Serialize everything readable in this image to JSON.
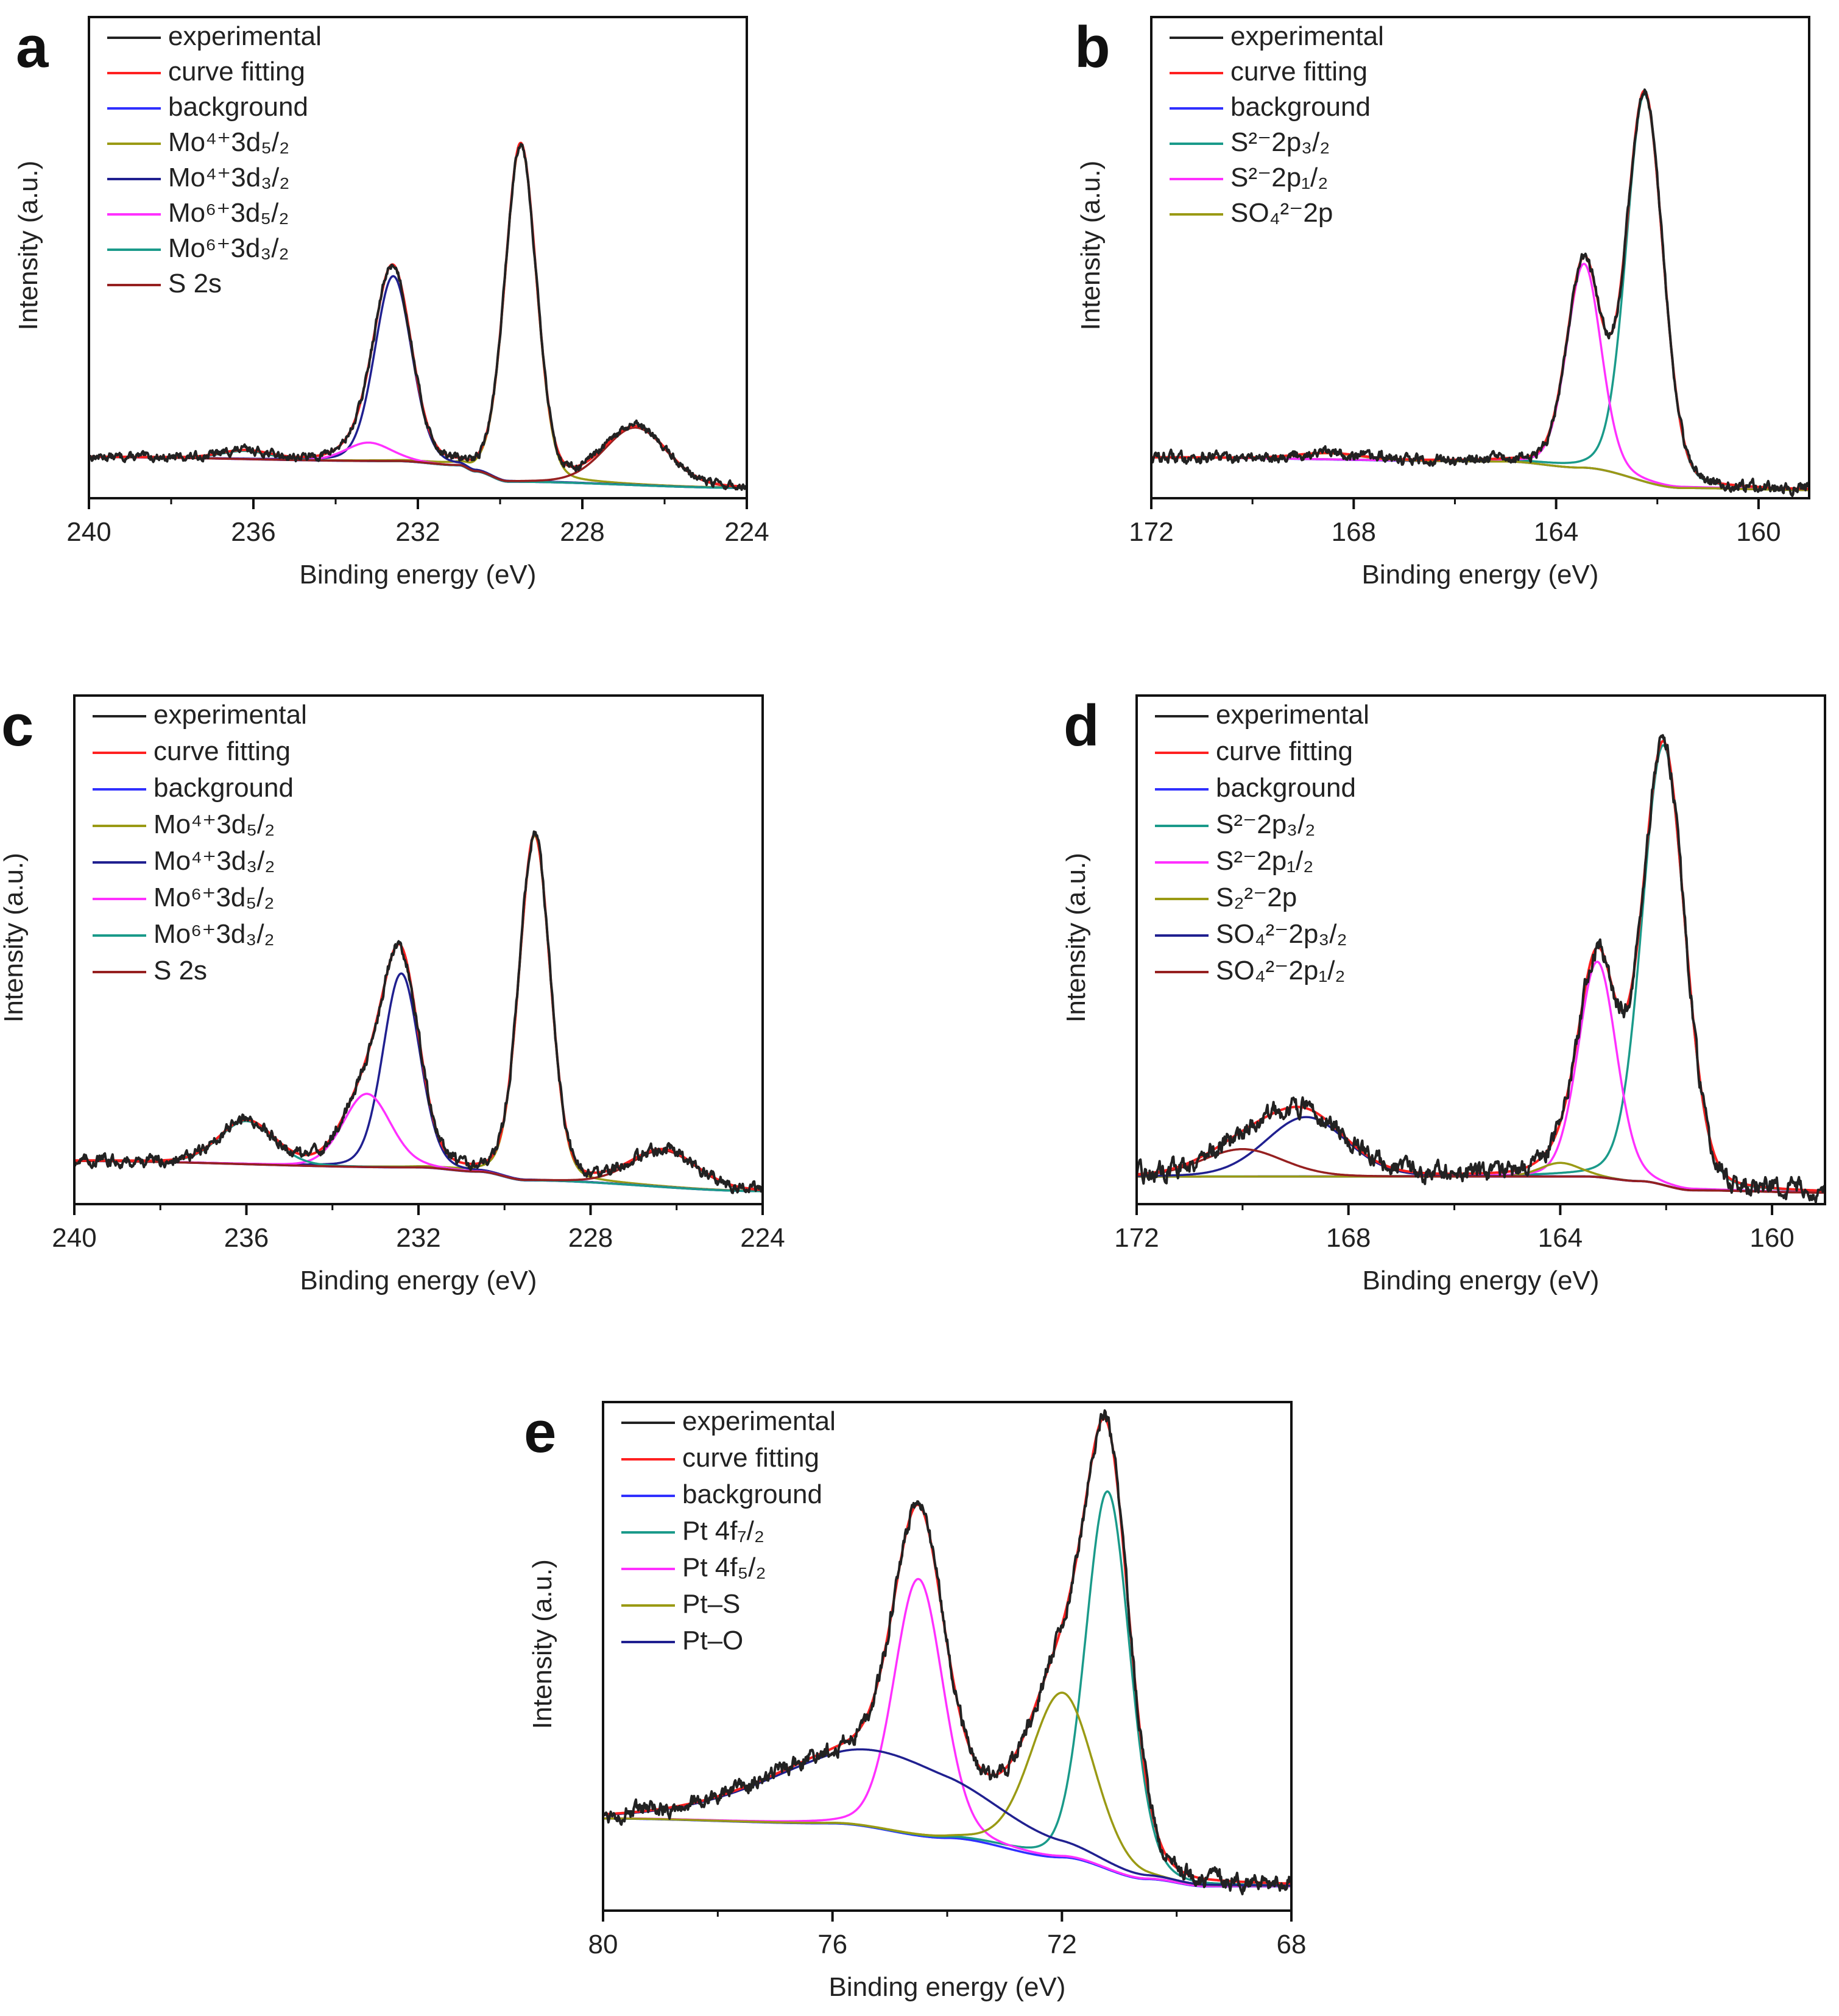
{
  "colors": {
    "experimental": "#222222",
    "curve_fitting": "#ff2020",
    "background": "#3030ff",
    "olive": "#9a9a14",
    "navy": "#202090",
    "magenta": "#ff30ff",
    "teal": "#1a9a8a",
    "maroon": "#962020"
  },
  "chart_data": [
    {
      "type": "line",
      "panel_label": "a",
      "xlabel": "Binding energy (eV)",
      "ylabel": "Intensity (a.u.)",
      "xlim": [
        240,
        224
      ],
      "x_reversed": true,
      "ticks": [
        "240",
        "236",
        "232",
        "228",
        "224"
      ],
      "tick_values": [
        240,
        236,
        232,
        228,
        224
      ],
      "minor_ticks": [
        238,
        234,
        230,
        226
      ],
      "grid": false,
      "legend_position": "top-left",
      "baseline": {
        "points": [
          [
            240,
            0.03
          ],
          [
            232.5,
            0.02
          ],
          [
            231,
            0.01
          ],
          [
            230.6,
            -0.005
          ],
          [
            229.8,
            -0.03
          ],
          [
            224,
            -0.045
          ]
        ]
      },
      "ylim": [
        -0.07,
        1.1
      ],
      "series": [
        {
          "name": "experimental",
          "color_key": "experimental",
          "kind": "sum",
          "noise": 0.006
        },
        {
          "name": "curve fitting",
          "color_key": "curve_fitting",
          "kind": "sum"
        },
        {
          "name": "background",
          "color_key": "background",
          "kind": "baseline"
        },
        {
          "name": "Mo⁴⁺3d₅/₂",
          "color_key": "olive",
          "kind": "peak",
          "center": 229.5,
          "height": 0.82,
          "fwhm": 0.9
        },
        {
          "name": "Mo⁴⁺3d₃/₂",
          "color_key": "navy",
          "kind": "peak",
          "center": 232.6,
          "height": 0.45,
          "fwhm": 1.05
        },
        {
          "name": "Mo⁶⁺3d₅/₂",
          "color_key": "magenta",
          "kind": "peak",
          "center": 233.2,
          "height": 0.045,
          "fwhm": 1.3
        },
        {
          "name": "Mo⁶⁺3d₃/₂",
          "color_key": "teal",
          "kind": "peak",
          "center": 236.2,
          "height": 0.02,
          "fwhm": 1.4
        },
        {
          "name": "S 2s",
          "color_key": "maroon",
          "kind": "peak",
          "center": 226.7,
          "height": 0.14,
          "fwhm": 1.8
        }
      ]
    },
    {
      "type": "line",
      "panel_label": "b",
      "xlabel": "Binding energy (eV)",
      "ylabel": "Intensity (a.u.)",
      "xlim": [
        172,
        159
      ],
      "x_reversed": true,
      "ticks": [
        "172",
        "168",
        "164",
        "160"
      ],
      "tick_values": [
        172,
        168,
        164,
        160
      ],
      "minor_ticks": [
        170,
        166,
        162
      ],
      "grid": false,
      "legend_position": "top-left",
      "baseline": {
        "points": [
          [
            172,
            0.02
          ],
          [
            165,
            0.01
          ],
          [
            163.5,
            -0.005
          ],
          [
            161.5,
            -0.055
          ],
          [
            159,
            -0.06
          ]
        ]
      },
      "ylim": [
        -0.08,
        1.1
      ],
      "series": [
        {
          "name": "experimental",
          "color_key": "experimental",
          "kind": "sum",
          "noise": 0.008
        },
        {
          "name": "curve fitting",
          "color_key": "curve_fitting",
          "kind": "sum"
        },
        {
          "name": "background",
          "color_key": "background",
          "kind": "baseline"
        },
        {
          "name": "S²⁻2p₃/₂",
          "color_key": "teal",
          "kind": "peak",
          "center": 162.25,
          "height": 0.95,
          "fwhm": 0.85
        },
        {
          "name": "S²⁻2p₁/₂",
          "color_key": "magenta",
          "kind": "peak",
          "center": 163.45,
          "height": 0.5,
          "fwhm": 0.8
        },
        {
          "name": "SO₄²⁻2p",
          "color_key": "olive",
          "kind": "peak",
          "center": 168.5,
          "height": 0.015,
          "fwhm": 1.5
        }
      ]
    },
    {
      "type": "line",
      "panel_label": "c",
      "xlabel": "Binding energy (eV)",
      "ylabel": "Intensity (a.u.)",
      "xlim": [
        240,
        224
      ],
      "x_reversed": true,
      "ticks": [
        "240",
        "236",
        "232",
        "228",
        "224"
      ],
      "tick_values": [
        240,
        236,
        232,
        228,
        224
      ],
      "minor_ticks": [
        238,
        234,
        230,
        226
      ],
      "grid": false,
      "legend_position": "top-left",
      "baseline": {
        "points": [
          [
            240,
            0.02
          ],
          [
            232,
            0.005
          ],
          [
            230.6,
            -0.005
          ],
          [
            229.5,
            -0.025
          ],
          [
            224,
            -0.05
          ]
        ]
      },
      "ylim": [
        -0.08,
        1.1
      ],
      "series": [
        {
          "name": "experimental",
          "color_key": "experimental",
          "kind": "sum",
          "noise": 0.008
        },
        {
          "name": "curve fitting",
          "color_key": "curve_fitting",
          "kind": "sum"
        },
        {
          "name": "background",
          "color_key": "background",
          "kind": "baseline"
        },
        {
          "name": "Mo⁴⁺3d₅/₂",
          "color_key": "olive",
          "kind": "peak",
          "center": 229.3,
          "height": 0.8,
          "fwhm": 0.85
        },
        {
          "name": "Mo⁴⁺3d₃/₂",
          "color_key": "navy",
          "kind": "peak",
          "center": 232.4,
          "height": 0.45,
          "fwhm": 1.0
        },
        {
          "name": "Mo⁶⁺3d₅/₂",
          "color_key": "magenta",
          "kind": "peak",
          "center": 233.2,
          "height": 0.17,
          "fwhm": 1.3
        },
        {
          "name": "Mo⁶⁺3d₃/₂",
          "color_key": "teal",
          "kind": "peak",
          "center": 236.0,
          "height": 0.1,
          "fwhm": 1.5
        },
        {
          "name": "S 2s",
          "color_key": "maroon",
          "kind": "peak",
          "center": 226.3,
          "height": 0.085,
          "fwhm": 1.8
        }
      ]
    },
    {
      "type": "line",
      "panel_label": "d",
      "xlabel": "Binding energy (eV)",
      "ylabel": "Intensity (a.u.)",
      "xlim": [
        172,
        159
      ],
      "x_reversed": true,
      "ticks": [
        "172",
        "168",
        "164",
        "160"
      ],
      "tick_values": [
        172,
        168,
        164,
        160
      ],
      "minor_ticks": [
        170,
        166,
        162
      ],
      "grid": false,
      "legend_position": "top-left",
      "baseline": {
        "points": [
          [
            172,
            0.0
          ],
          [
            163.5,
            0.0
          ],
          [
            162.5,
            -0.01
          ],
          [
            161.5,
            -0.03
          ],
          [
            159,
            -0.035
          ]
        ]
      },
      "ylim": [
        -0.06,
        1.05
      ],
      "series": [
        {
          "name": "experimental",
          "color_key": "experimental",
          "kind": "sum",
          "noise": 0.012
        },
        {
          "name": "curve fitting",
          "color_key": "curve_fitting",
          "kind": "sum"
        },
        {
          "name": "background",
          "color_key": "background",
          "kind": "baseline"
        },
        {
          "name": "S²⁻2p₃/₂",
          "color_key": "teal",
          "kind": "peak",
          "center": 162.05,
          "height": 0.96,
          "fwhm": 0.95
        },
        {
          "name": "S²⁻2p₁/₂",
          "color_key": "magenta",
          "kind": "peak",
          "center": 163.3,
          "height": 0.47,
          "fwhm": 0.85
        },
        {
          "name": "S₂²⁻2p",
          "color_key": "olive",
          "kind": "peak",
          "center": 164.0,
          "height": 0.03,
          "fwhm": 0.9
        },
        {
          "name": "SO₄²⁻2p₃/₂",
          "color_key": "navy",
          "kind": "peak",
          "center": 168.8,
          "height": 0.13,
          "fwhm": 1.8
        },
        {
          "name": "SO₄²⁻2p₁/₂",
          "color_key": "maroon",
          "kind": "peak",
          "center": 170.0,
          "height": 0.06,
          "fwhm": 1.8
        }
      ]
    },
    {
      "type": "line",
      "panel_label": "e",
      "xlabel": "Binding energy (eV)",
      "ylabel": "Intensity (a.u.)",
      "xlim": [
        80,
        68
      ],
      "x_reversed": true,
      "ticks": [
        "80",
        "76",
        "72",
        "68"
      ],
      "tick_values": [
        80,
        76,
        72,
        68
      ],
      "minor_ticks": [
        78,
        74,
        70
      ],
      "grid": false,
      "legend_position": "top-left",
      "baseline": {
        "points": [
          [
            80,
            0.14
          ],
          [
            76,
            0.13
          ],
          [
            74,
            0.1
          ],
          [
            72,
            0.06
          ],
          [
            70.5,
            0.015
          ],
          [
            69.5,
            0.0
          ],
          [
            68,
            0.0
          ]
        ]
      },
      "ylim": [
        -0.05,
        1.0
      ],
      "series": [
        {
          "name": "experimental",
          "color_key": "experimental",
          "kind": "sum",
          "noise": 0.01
        },
        {
          "name": "curve fitting",
          "color_key": "curve_fitting",
          "kind": "sum"
        },
        {
          "name": "background",
          "color_key": "background",
          "kind": "baseline"
        },
        {
          "name": "Pt 4f₇/₂",
          "color_key": "teal",
          "kind": "peak",
          "center": 71.2,
          "height": 0.78,
          "fwhm": 0.9
        },
        {
          "name": "Pt 4f₅/₂",
          "color_key": "magenta",
          "kind": "peak",
          "center": 74.5,
          "height": 0.53,
          "fwhm": 1.0
        },
        {
          "name": "Pt–S",
          "color_key": "olive",
          "kind": "peak",
          "center": 72.0,
          "height": 0.34,
          "fwhm": 1.3
        },
        {
          "name": "Pt–O",
          "color_key": "navy",
          "kind": "peak",
          "center": 75.2,
          "height": 0.16,
          "fwhm": 4.2
        }
      ]
    }
  ]
}
